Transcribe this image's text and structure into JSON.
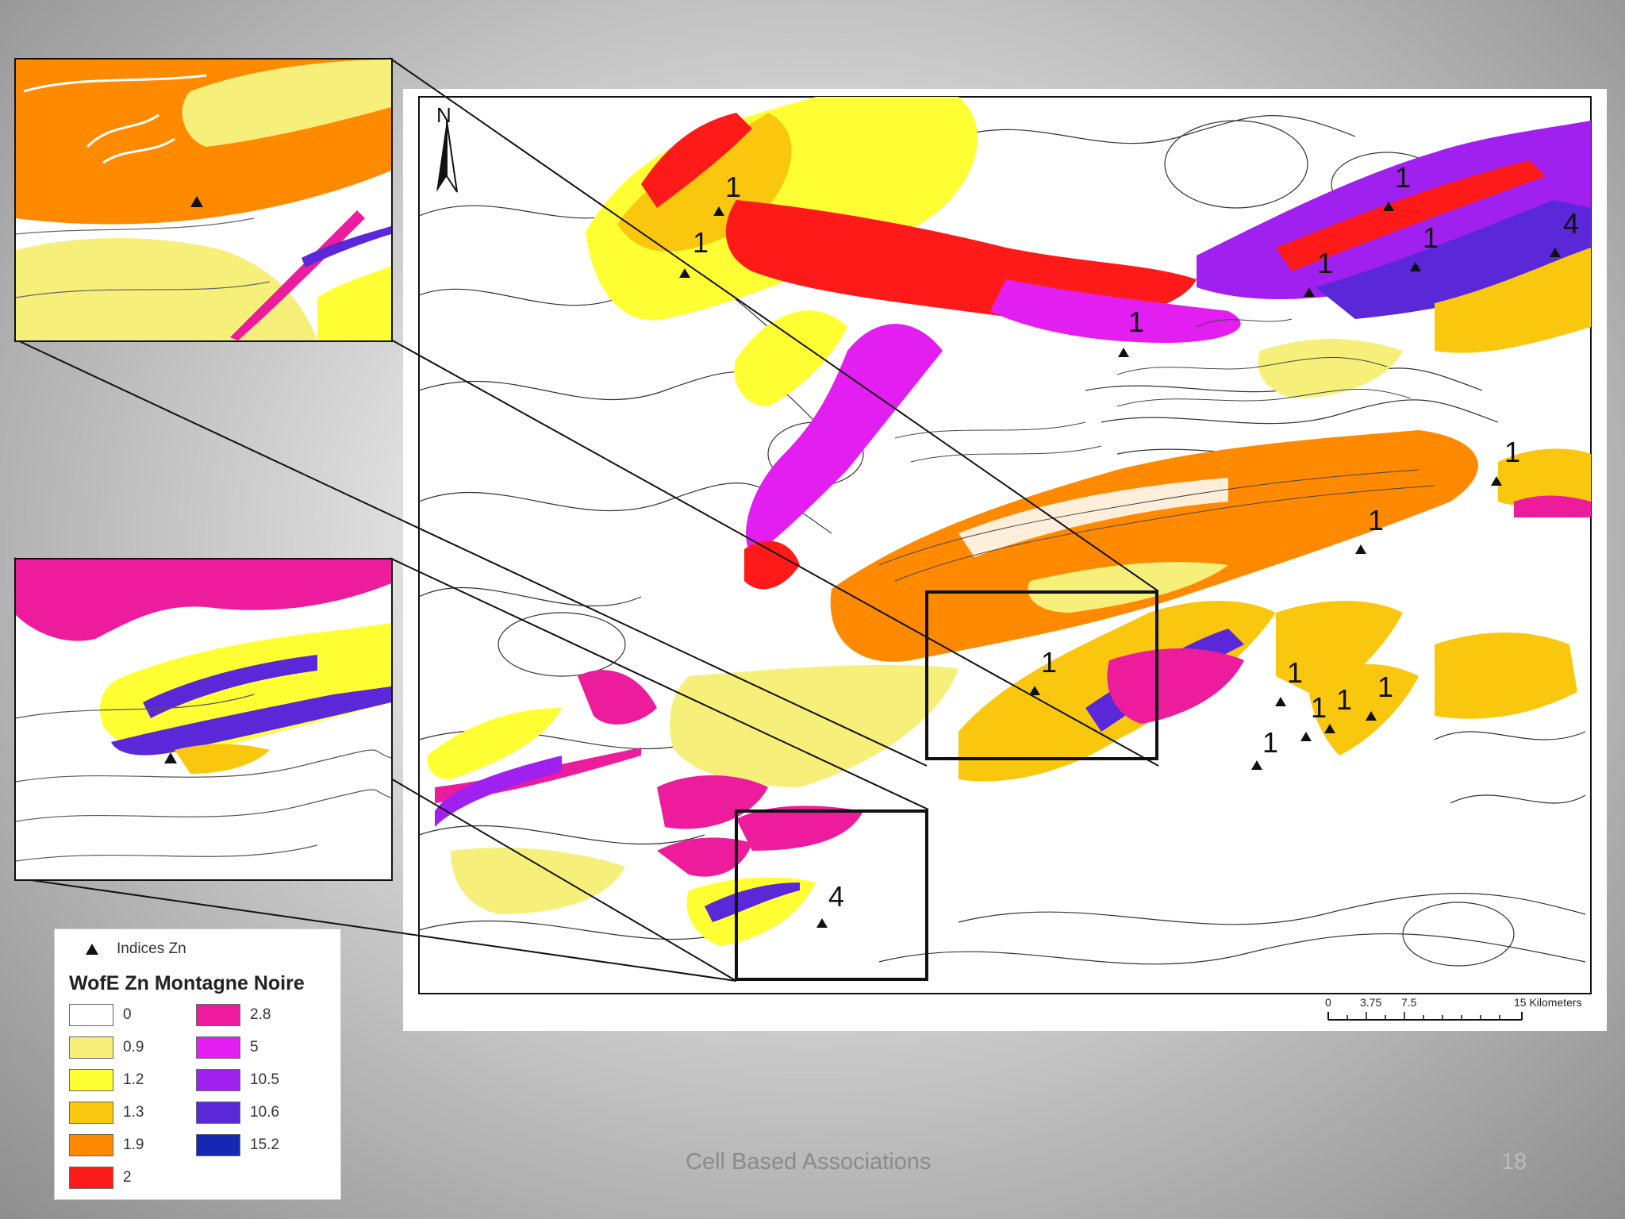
{
  "legend": {
    "indicator_label": "Indices Zn",
    "title": "WofE Zn Montagne Noire",
    "classes": [
      {
        "value": "0",
        "color": "#ffffff"
      },
      {
        "value": "0.9",
        "color": "#f6f07a"
      },
      {
        "value": "1.2",
        "color": "#ffff33"
      },
      {
        "value": "1.3",
        "color": "#f9c80e"
      },
      {
        "value": "1.9",
        "color": "#ff8a00"
      },
      {
        "value": "2",
        "color": "#ff1a1a"
      },
      {
        "value": "2.8",
        "color": "#ec1c9c"
      },
      {
        "value": "5",
        "color": "#e21ef0"
      },
      {
        "value": "10.5",
        "color": "#a020f0"
      },
      {
        "value": "10.6",
        "color": "#5a28d8"
      },
      {
        "value": "15.2",
        "color": "#1428b4"
      }
    ]
  },
  "map": {
    "north_label": "N",
    "scale_bar": {
      "ticks": [
        "0",
        "3.75",
        "7.5",
        "15 Kilometers"
      ]
    },
    "indices": [
      {
        "label": "1"
      },
      {
        "label": "1"
      },
      {
        "label": "1"
      },
      {
        "label": "1"
      },
      {
        "label": "1"
      },
      {
        "label": "1"
      },
      {
        "label": "1"
      },
      {
        "label": "1"
      },
      {
        "label": "1"
      },
      {
        "label": "1"
      },
      {
        "label": "1"
      },
      {
        "label": "1"
      },
      {
        "label": "1"
      },
      {
        "label": "1"
      },
      {
        "label": "4"
      },
      {
        "label": "4"
      }
    ]
  },
  "footer": {
    "title": "Cell Based Associations",
    "page_number": "18"
  }
}
